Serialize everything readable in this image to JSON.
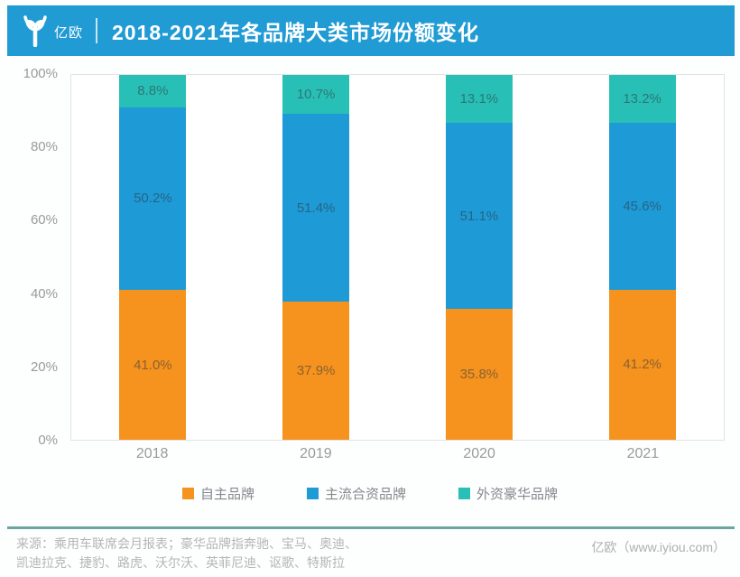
{
  "header": {
    "logo_text": "亿欧",
    "title": "2018-2021年各品牌大类市场份额变化",
    "bg_color": "#219BD4"
  },
  "chart_data": {
    "type": "bar",
    "stacked": true,
    "title": "2018-2021年各品牌大类市场份额变化",
    "categories": [
      "2018",
      "2019",
      "2020",
      "2021"
    ],
    "series": [
      {
        "name": "自主品牌",
        "color": "#F6921E",
        "values": [
          41.0,
          37.9,
          35.8,
          41.2
        ]
      },
      {
        "name": "主流合资品牌",
        "color": "#1E9AD6",
        "values": [
          50.2,
          51.4,
          51.1,
          45.6
        ]
      },
      {
        "name": "外资豪华品牌",
        "color": "#28C0B6",
        "values": [
          8.8,
          10.7,
          13.1,
          13.2
        ]
      }
    ],
    "yticks": [
      "0%",
      "20%",
      "40%",
      "60%",
      "80%",
      "100%"
    ],
    "ylim": [
      0,
      100
    ],
    "grid": false,
    "legend_position": "bottom",
    "value_suffix": "%"
  },
  "footer": {
    "line_color": "#6AA7A1",
    "source": "来源：乘用车联席会月报表；豪华品牌指奔驰、宝马、奥迪、\n凯迪拉克、捷豹、路虎、沃尔沃、英菲尼迪、讴歌、特斯拉",
    "brand": "亿欧（www.iyiou.com）"
  }
}
